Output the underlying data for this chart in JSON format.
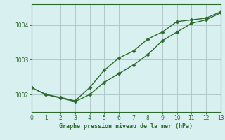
{
  "line1_x": [
    0,
    1,
    2,
    3,
    4,
    5,
    6,
    7,
    8,
    9,
    10,
    11,
    12,
    13
  ],
  "line1_y": [
    1002.2,
    1002.0,
    1001.9,
    1001.8,
    1002.0,
    1002.35,
    1002.6,
    1002.85,
    1003.15,
    1003.55,
    1003.8,
    1004.05,
    1004.15,
    1004.35
  ],
  "line2_x": [
    0,
    1,
    2,
    3,
    4,
    5,
    6,
    7,
    8,
    9,
    10,
    11,
    12,
    13
  ],
  "line2_y": [
    1002.2,
    1002.0,
    1001.92,
    1001.82,
    1002.2,
    1002.7,
    1003.05,
    1003.25,
    1003.6,
    1003.8,
    1004.1,
    1004.15,
    1004.2,
    1004.38
  ],
  "line_color": "#2d6a2d",
  "bg_color": "#d8f0f0",
  "grid_color": "#b0c8c8",
  "xlabel": "Graphe pression niveau de la mer (hPa)",
  "xlim": [
    0,
    13
  ],
  "ylim": [
    1001.5,
    1004.6
  ],
  "yticks": [
    1002,
    1003,
    1004
  ],
  "xticks": [
    0,
    1,
    2,
    3,
    4,
    5,
    6,
    7,
    8,
    9,
    10,
    11,
    12,
    13
  ],
  "xlabel_color": "#2d6a2d",
  "tick_color": "#2d6a2d",
  "axis_color": "#2d6a2d",
  "marker": "D",
  "markersize": 2.5,
  "linewidth": 1.0
}
